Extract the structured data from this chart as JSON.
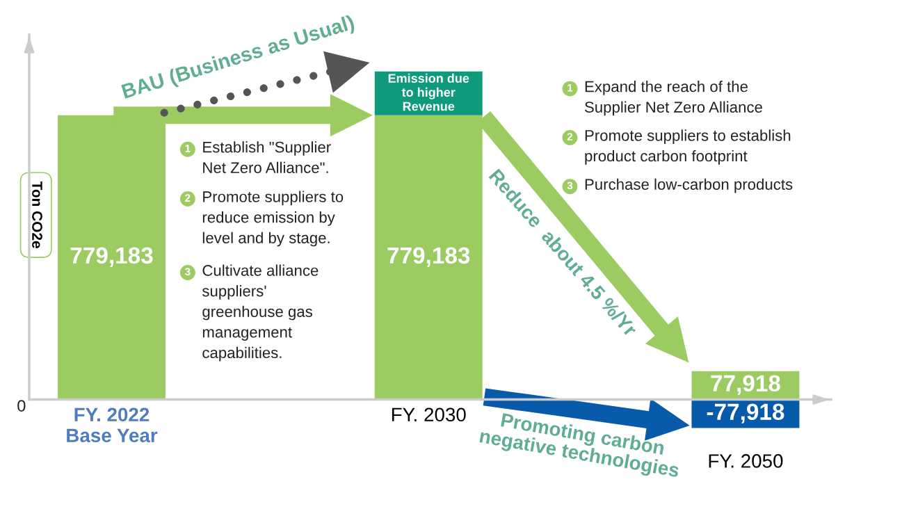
{
  "chart_data": {
    "type": "bar",
    "stacked": true,
    "ylabel": "Ton CO2e",
    "categories": [
      "FY. 2022\nBase Year",
      "FY. 2030",
      "FY. 2050"
    ],
    "series": [
      {
        "color": "#9ccb62",
        "values": [
          779183,
          779183,
          77918
        ],
        "value_labels": [
          "779,183",
          "779,183",
          "77,918"
        ]
      },
      {
        "name": "Emission due\nto higher\nRevenue",
        "color": "#0f9a7c",
        "values": [
          null,
          120000,
          null
        ]
      },
      {
        "color": "#085aaa",
        "values": [
          null,
          null,
          -77918
        ],
        "value_labels": [
          null,
          null,
          "-77,918"
        ]
      }
    ],
    "grid": false,
    "annotations": [
      "0",
      "BAU (Business as Usual)",
      "Reduce  about 4.5 %/Yr",
      "Promoting carbon\nnegative technologies",
      "1",
      "Establish \"Supplier\nNet Zero Alliance\".",
      "2",
      "Promote suppliers to\nreduce emission by\nlevel and by stage.",
      "3",
      "Cultivate alliance\nsuppliers'\ngreenhouse gas\nmanagement\ncapabilities.",
      "1",
      "Expand the reach of the\nSupplier Net Zero Alliance",
      "2",
      "Promote suppliers to establish\nproduct carbon footprint",
      "3",
      "Purchase low-carbon products"
    ]
  }
}
